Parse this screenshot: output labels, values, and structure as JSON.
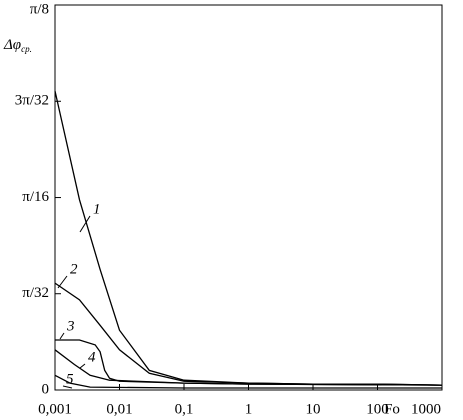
{
  "chart_data": {
    "type": "line",
    "ylabel": "Δφ",
    "ylabel_subscript": "ср.",
    "xlabel": "Fo",
    "xscale": "log",
    "xlim": [
      0.001,
      1000
    ],
    "xticks": [
      {
        "value": 0.001,
        "label": "0,001"
      },
      {
        "value": 0.01,
        "label": "0,01"
      },
      {
        "value": 0.1,
        "label": "0,1"
      },
      1,
      10,
      100,
      1000
    ],
    "ylim": [
      0,
      0.3927
    ],
    "yticks": [
      0,
      {
        "value": 0.0982,
        "label": "π/32"
      },
      {
        "value": 0.1963,
        "label": "π/16"
      },
      {
        "value": 0.2945,
        "label": "3π/32"
      },
      {
        "value": 0.3927,
        "label": "π/8"
      }
    ],
    "series": [
      {
        "name": "1",
        "color": "#000000",
        "x": [
          0.001,
          0.0024,
          0.005,
          0.01,
          0.029,
          0.1,
          1,
          10,
          100,
          1000
        ],
        "values": [
          0.305,
          0.194,
          0.123,
          0.061,
          0.02,
          0.01,
          0.007,
          0.006,
          0.006,
          0.005
        ]
      },
      {
        "name": "2",
        "color": "#000000",
        "x": [
          0.001,
          0.0024,
          0.005,
          0.01,
          0.029,
          0.1,
          1,
          10,
          100,
          1000
        ],
        "values": [
          0.109,
          0.092,
          0.066,
          0.041,
          0.017,
          0.009,
          0.007,
          0.006,
          0.006,
          0.005
        ]
      },
      {
        "name": "3",
        "color": "#000000",
        "x": [
          0.001,
          0.0024,
          0.0042,
          0.005,
          0.0059,
          0.007,
          0.01,
          0.1,
          1,
          1000
        ],
        "values": [
          0.051,
          0.051,
          0.046,
          0.039,
          0.02,
          0.012,
          0.009,
          0.007,
          0.006,
          0.005
        ]
      },
      {
        "name": "4",
        "color": "#000000",
        "x": [
          0.001,
          0.002,
          0.0035,
          0.007,
          0.1,
          1,
          1000
        ],
        "values": [
          0.041,
          0.026,
          0.015,
          0.01,
          0.007,
          0.006,
          0.005
        ]
      },
      {
        "name": "5",
        "color": "#000000",
        "x": [
          0.001,
          0.0017,
          0.0035,
          0.1,
          1000
        ],
        "values": [
          0.015,
          0.007,
          0.003,
          0.002,
          0.002
        ]
      }
    ]
  }
}
